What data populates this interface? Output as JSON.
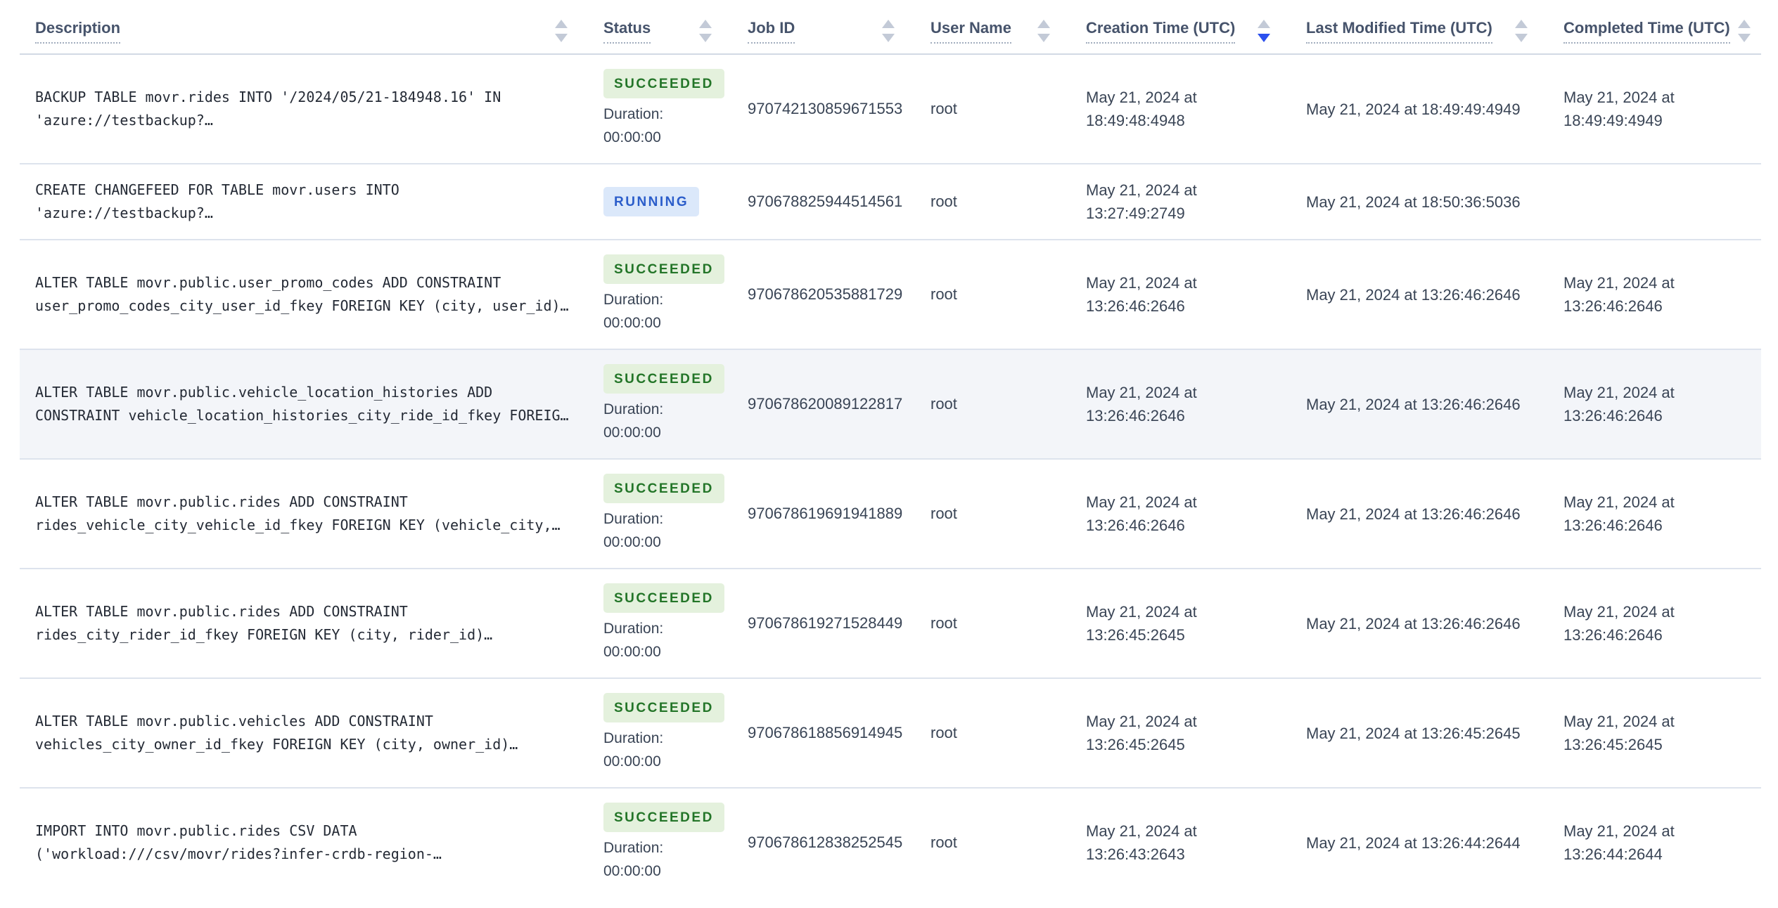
{
  "table": {
    "columns": [
      {
        "label": "Description"
      },
      {
        "label": "Status"
      },
      {
        "label": "Job ID"
      },
      {
        "label": "User Name"
      },
      {
        "label": "Creation Time (UTC)"
      },
      {
        "label": "Last Modified Time (UTC)"
      },
      {
        "label": "Completed Time (UTC)"
      }
    ],
    "sort": {
      "column_index": 4,
      "column": "Creation Time (UTC)",
      "direction": "desc"
    },
    "labels": {
      "duration": "Duration:"
    },
    "hovered_row_index": 3,
    "rows": [
      {
        "description_lines": [
          "BACKUP TABLE movr.rides INTO '/2024/05/21-184948.16' IN",
          "'azure://testbackup?…"
        ],
        "status": "SUCCEEDED",
        "duration": "00:00:00",
        "job_id": "970742130859671553",
        "user_name": "root",
        "creation_time": "May 21, 2024 at 18:49:48:4948",
        "last_modified_time": "May 21, 2024 at 18:49:49:4949",
        "completed_time": "May 21, 2024 at 18:49:49:4949"
      },
      {
        "description_lines": [
          "CREATE CHANGEFEED FOR TABLE movr.users INTO",
          "'azure://testbackup?…"
        ],
        "status": "RUNNING",
        "duration": null,
        "job_id": "970678825944514561",
        "user_name": "root",
        "creation_time": "May 21, 2024 at 13:27:49:2749",
        "last_modified_time": "May 21, 2024 at 18:50:36:5036",
        "completed_time": ""
      },
      {
        "description_lines": [
          "ALTER TABLE movr.public.user_promo_codes ADD CONSTRAINT",
          "user_promo_codes_city_user_id_fkey FOREIGN KEY (city, user_id)…"
        ],
        "status": "SUCCEEDED",
        "duration": "00:00:00",
        "job_id": "970678620535881729",
        "user_name": "root",
        "creation_time": "May 21, 2024 at 13:26:46:2646",
        "last_modified_time": "May 21, 2024 at 13:26:46:2646",
        "completed_time": "May 21, 2024 at 13:26:46:2646"
      },
      {
        "description_lines": [
          "ALTER TABLE movr.public.vehicle_location_histories ADD",
          "CONSTRAINT vehicle_location_histories_city_ride_id_fkey FOREIG…"
        ],
        "status": "SUCCEEDED",
        "duration": "00:00:00",
        "job_id": "970678620089122817",
        "user_name": "root",
        "creation_time": "May 21, 2024 at 13:26:46:2646",
        "last_modified_time": "May 21, 2024 at 13:26:46:2646",
        "completed_time": "May 21, 2024 at 13:26:46:2646"
      },
      {
        "description_lines": [
          "ALTER TABLE movr.public.rides ADD CONSTRAINT",
          "rides_vehicle_city_vehicle_id_fkey FOREIGN KEY (vehicle_city,…"
        ],
        "status": "SUCCEEDED",
        "duration": "00:00:00",
        "job_id": "970678619691941889",
        "user_name": "root",
        "creation_time": "May 21, 2024 at 13:26:46:2646",
        "last_modified_time": "May 21, 2024 at 13:26:46:2646",
        "completed_time": "May 21, 2024 at 13:26:46:2646"
      },
      {
        "description_lines": [
          "ALTER TABLE movr.public.rides ADD CONSTRAINT",
          "rides_city_rider_id_fkey FOREIGN KEY (city, rider_id)…"
        ],
        "status": "SUCCEEDED",
        "duration": "00:00:00",
        "job_id": "970678619271528449",
        "user_name": "root",
        "creation_time": "May 21, 2024 at 13:26:45:2645",
        "last_modified_time": "May 21, 2024 at 13:26:46:2646",
        "completed_time": "May 21, 2024 at 13:26:46:2646"
      },
      {
        "description_lines": [
          "ALTER TABLE movr.public.vehicles ADD CONSTRAINT",
          "vehicles_city_owner_id_fkey FOREIGN KEY (city, owner_id)…"
        ],
        "status": "SUCCEEDED",
        "duration": "00:00:00",
        "job_id": "970678618856914945",
        "user_name": "root",
        "creation_time": "May 21, 2024 at 13:26:45:2645",
        "last_modified_time": "May 21, 2024 at 13:26:45:2645",
        "completed_time": "May 21, 2024 at 13:26:45:2645"
      },
      {
        "description_lines": [
          "IMPORT INTO movr.public.rides CSV DATA",
          "('workload:///csv/movr/rides?infer-crdb-region-…"
        ],
        "status": "SUCCEEDED",
        "duration": "00:00:00",
        "job_id": "970678612838252545",
        "user_name": "root",
        "creation_time": "May 21, 2024 at 13:26:43:2643",
        "last_modified_time": "May 21, 2024 at 13:26:44:2644",
        "completed_time": "May 21, 2024 at 13:26:44:2644"
      }
    ],
    "colors": {
      "header_text": "#46536b",
      "cell_text": "#394455",
      "description_text": "#242a35",
      "row_divider": "#dde3ed",
      "header_divider": "#d2d9e4",
      "hovered_row_bg": "#f3f5f9",
      "succeeded_text": "#237528",
      "succeeded_bg": "#e4f1dd",
      "running_text": "#2b5dca",
      "running_bg": "#dbe8fa",
      "sort_arrow_active": "#2b50ee",
      "sort_arrow_inactive": "#c3cad7"
    }
  }
}
